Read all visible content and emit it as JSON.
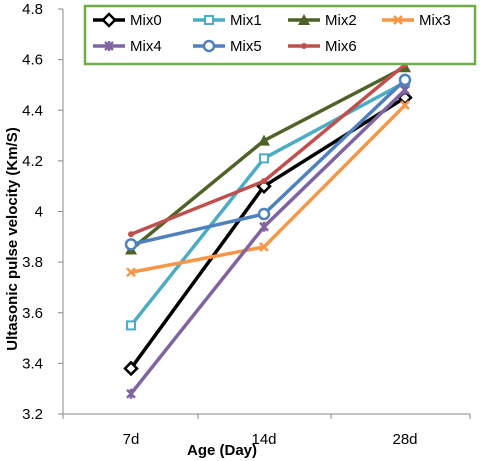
{
  "chart_data": {
    "type": "line",
    "categories": [
      "7d",
      "14d",
      "28d"
    ],
    "xlabel": "Age (Day)",
    "ylabel": "Ultasonic pulse velocity (Km/S)",
    "ylim": [
      3.2,
      4.8
    ],
    "y_ticks": [
      "3.2",
      "3.4",
      "3.6",
      "3.8",
      "4",
      "4.2",
      "4.4",
      "4.6",
      "4.8"
    ],
    "grid": false,
    "legend_position": "top",
    "series": [
      {
        "name": "Mix0",
        "values": [
          3.38,
          4.1,
          4.45
        ],
        "color": "#000000",
        "marker": "diamond"
      },
      {
        "name": "Mix1",
        "values": [
          3.55,
          4.21,
          4.51
        ],
        "color": "#4bacc6",
        "marker": "square"
      },
      {
        "name": "Mix2",
        "values": [
          3.85,
          4.28,
          4.57
        ],
        "color": "#4f6228",
        "marker": "triangle"
      },
      {
        "name": "Mix3",
        "values": [
          3.76,
          3.86,
          4.42
        ],
        "color": "#f79646",
        "marker": "x"
      },
      {
        "name": "Mix4",
        "values": [
          3.28,
          3.94,
          4.48
        ],
        "color": "#8064a2",
        "marker": "star"
      },
      {
        "name": "Mix5",
        "values": [
          3.87,
          3.99,
          4.52
        ],
        "color": "#4f81bd",
        "marker": "circle"
      },
      {
        "name": "Mix6",
        "values": [
          3.91,
          4.12,
          4.58
        ],
        "color": "#c0504d",
        "marker": "dot"
      }
    ],
    "legend_border_color": "#70ad47"
  }
}
